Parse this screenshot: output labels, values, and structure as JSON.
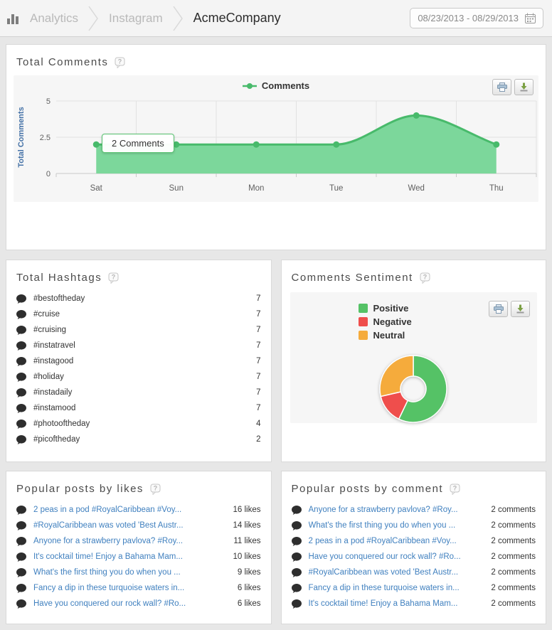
{
  "header": {
    "breadcrumb": [
      "Analytics",
      "Instagram",
      "AcmeCompany"
    ],
    "date_range": "08/23/2013 - 08/29/2013"
  },
  "colors": {
    "link": "#4080bf",
    "line": "#48ba6b",
    "area": "#7cd79b",
    "positive": "#55c266",
    "negative": "#ef4e4c",
    "neutral": "#f5ab3c"
  },
  "total_comments": {
    "title": "Total Comments",
    "tooltip": "2 Comments"
  },
  "chart_data": [
    {
      "type": "area",
      "title": "Total Comments",
      "categories": [
        "Sat",
        "Sun",
        "Mon",
        "Tue",
        "Wed",
        "Thu"
      ],
      "series": [
        {
          "name": "Comments",
          "values": [
            2,
            2,
            2,
            2,
            4,
            2
          ]
        }
      ],
      "xlabel": "",
      "ylabel": "Total Comments",
      "ylim": [
        0,
        5
      ],
      "yticks": [
        0,
        2.5,
        5
      ],
      "grid": true,
      "legend_position": "top-center",
      "line_color": "#48ba6b",
      "area_color": "#7cd79b"
    },
    {
      "type": "pie",
      "title": "Comments Sentiment",
      "labels": [
        "Positive",
        "Negative",
        "Neutral"
      ],
      "values": [
        8,
        2,
        4
      ],
      "colors": [
        "#55c266",
        "#ef4e4c",
        "#f5ab3c"
      ],
      "donut": true,
      "legend_position": "top-left"
    }
  ],
  "total_hashtags": {
    "title": "Total Hashtags",
    "items": [
      {
        "tag": "#bestoftheday",
        "count": "7"
      },
      {
        "tag": "#cruise",
        "count": "7"
      },
      {
        "tag": "#cruising",
        "count": "7"
      },
      {
        "tag": "#instatravel",
        "count": "7"
      },
      {
        "tag": "#instagood",
        "count": "7"
      },
      {
        "tag": "#holiday",
        "count": "7"
      },
      {
        "tag": "#instadaily",
        "count": "7"
      },
      {
        "tag": "#instamood",
        "count": "7"
      },
      {
        "tag": "#photooftheday",
        "count": "4"
      },
      {
        "tag": "#picoftheday",
        "count": "2"
      }
    ]
  },
  "sentiment": {
    "title": "Comments Sentiment",
    "legend": [
      {
        "label": "Positive",
        "color": "#55c266"
      },
      {
        "label": "Negative",
        "color": "#ef4e4c"
      },
      {
        "label": "Neutral",
        "color": "#f5ab3c"
      }
    ]
  },
  "popular_likes": {
    "title": "Popular posts by likes",
    "items": [
      {
        "text": "2 peas in a pod #RoyalCaribbean #Voy...",
        "count": "16 likes"
      },
      {
        "text": "#RoyalCaribbean was voted 'Best Austr...",
        "count": "14 likes"
      },
      {
        "text": "Anyone for a strawberry pavlova? #Roy...",
        "count": "11 likes"
      },
      {
        "text": "It's cocktail time! Enjoy a Bahama Mam...",
        "count": "10 likes"
      },
      {
        "text": "What's the first thing you do when you ...",
        "count": "9 likes"
      },
      {
        "text": "Fancy a dip in these turquoise waters in...",
        "count": "6 likes"
      },
      {
        "text": "Have you conquered our rock wall? #Ro...",
        "count": "6 likes"
      }
    ]
  },
  "popular_comments": {
    "title": "Popular posts by comment",
    "items": [
      {
        "text": "Anyone for a strawberry pavlova? #Roy...",
        "count": "2 comments"
      },
      {
        "text": "What's the first thing you do when you ...",
        "count": "2 comments"
      },
      {
        "text": "2 peas in a pod #RoyalCaribbean #Voy...",
        "count": "2 comments"
      },
      {
        "text": "Have you conquered our rock wall? #Ro...",
        "count": "2 comments"
      },
      {
        "text": "#RoyalCaribbean was voted 'Best Austr...",
        "count": "2 comments"
      },
      {
        "text": "Fancy a dip in these turquoise waters in...",
        "count": "2 comments"
      },
      {
        "text": "It's cocktail time! Enjoy a Bahama Mam...",
        "count": "2 comments"
      }
    ]
  }
}
